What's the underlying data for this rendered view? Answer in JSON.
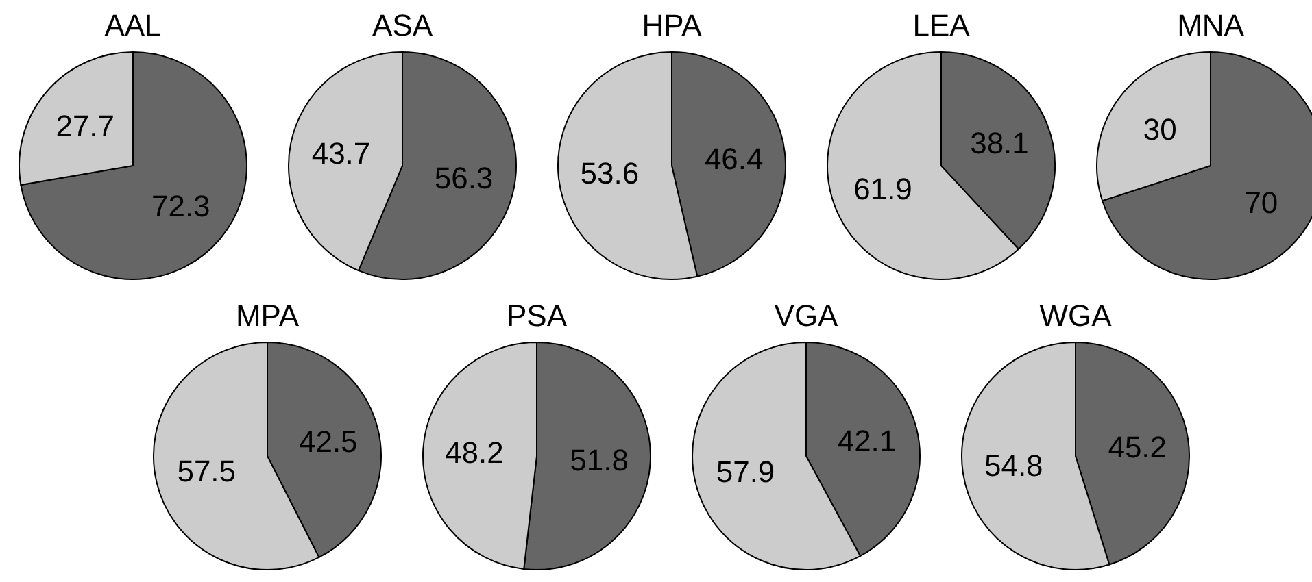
{
  "chart_data": [
    {
      "type": "pie",
      "title": "AAL",
      "categories": [
        null,
        null
      ],
      "values": [
        72.3,
        27.7
      ],
      "colors": [
        "#666666",
        "#cccccc"
      ],
      "data_labels": true
    },
    {
      "type": "pie",
      "title": "ASA",
      "categories": [
        null,
        null
      ],
      "values": [
        56.3,
        43.7
      ],
      "colors": [
        "#666666",
        "#cccccc"
      ],
      "data_labels": true
    },
    {
      "type": "pie",
      "title": "HPA",
      "categories": [
        null,
        null
      ],
      "values": [
        46.4,
        53.6
      ],
      "colors": [
        "#666666",
        "#cccccc"
      ],
      "data_labels": true
    },
    {
      "type": "pie",
      "title": "LEA",
      "categories": [
        null,
        null
      ],
      "values": [
        38.1,
        61.9
      ],
      "colors": [
        "#666666",
        "#cccccc"
      ],
      "data_labels": true
    },
    {
      "type": "pie",
      "title": "MNA",
      "categories": [
        null,
        null
      ],
      "values": [
        70,
        30
      ],
      "colors": [
        "#666666",
        "#cccccc"
      ],
      "data_labels": true
    },
    {
      "type": "pie",
      "title": "MPA",
      "categories": [
        null,
        null
      ],
      "values": [
        42.5,
        57.5
      ],
      "colors": [
        "#666666",
        "#cccccc"
      ],
      "data_labels": true
    },
    {
      "type": "pie",
      "title": "PSA",
      "categories": [
        null,
        null
      ],
      "values": [
        51.8,
        48.2
      ],
      "colors": [
        "#666666",
        "#cccccc"
      ],
      "data_labels": true
    },
    {
      "type": "pie",
      "title": "VGA",
      "categories": [
        null,
        null
      ],
      "values": [
        42.1,
        57.9
      ],
      "colors": [
        "#666666",
        "#cccccc"
      ],
      "data_labels": true
    },
    {
      "type": "pie",
      "title": "WGA",
      "categories": [
        null,
        null
      ],
      "values": [
        45.2,
        54.8
      ],
      "colors": [
        "#666666",
        "#cccccc"
      ],
      "data_labels": true
    }
  ]
}
